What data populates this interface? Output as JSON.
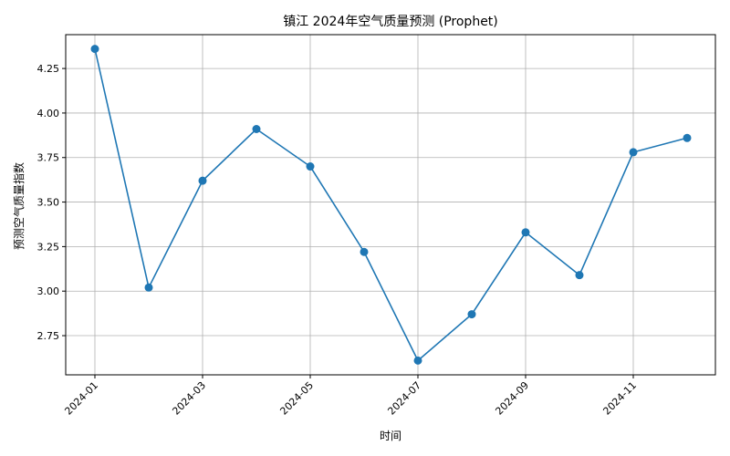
{
  "chart_data": {
    "type": "line",
    "title": "镇江 2024年空气质量预测 (Prophet)",
    "xlabel": "时间",
    "ylabel": "预测空气质量指数",
    "x": [
      "2024-01",
      "2024-02",
      "2024-03",
      "2024-04",
      "2024-05",
      "2024-06",
      "2024-07",
      "2024-08",
      "2024-09",
      "2024-10",
      "2024-11",
      "2024-12"
    ],
    "x_tick_labels": [
      "2024-01",
      "2024-03",
      "2024-05",
      "2024-07",
      "2024-09",
      "2024-11"
    ],
    "series": [
      {
        "values": [
          4.36,
          3.02,
          3.62,
          3.91,
          3.7,
          3.22,
          2.61,
          2.87,
          3.33,
          3.09,
          3.78,
          3.86
        ]
      }
    ],
    "yticks": [
      2.75,
      3.0,
      3.25,
      3.5,
      3.75,
      4.0,
      4.25
    ],
    "ytick_labels": [
      "2.75",
      "3.00",
      "3.25",
      "3.50",
      "3.75",
      "4.00",
      "4.25"
    ],
    "ylim": [
      2.53,
      4.44
    ],
    "grid": true,
    "color": "#1f77b4",
    "marker": "circle"
  }
}
